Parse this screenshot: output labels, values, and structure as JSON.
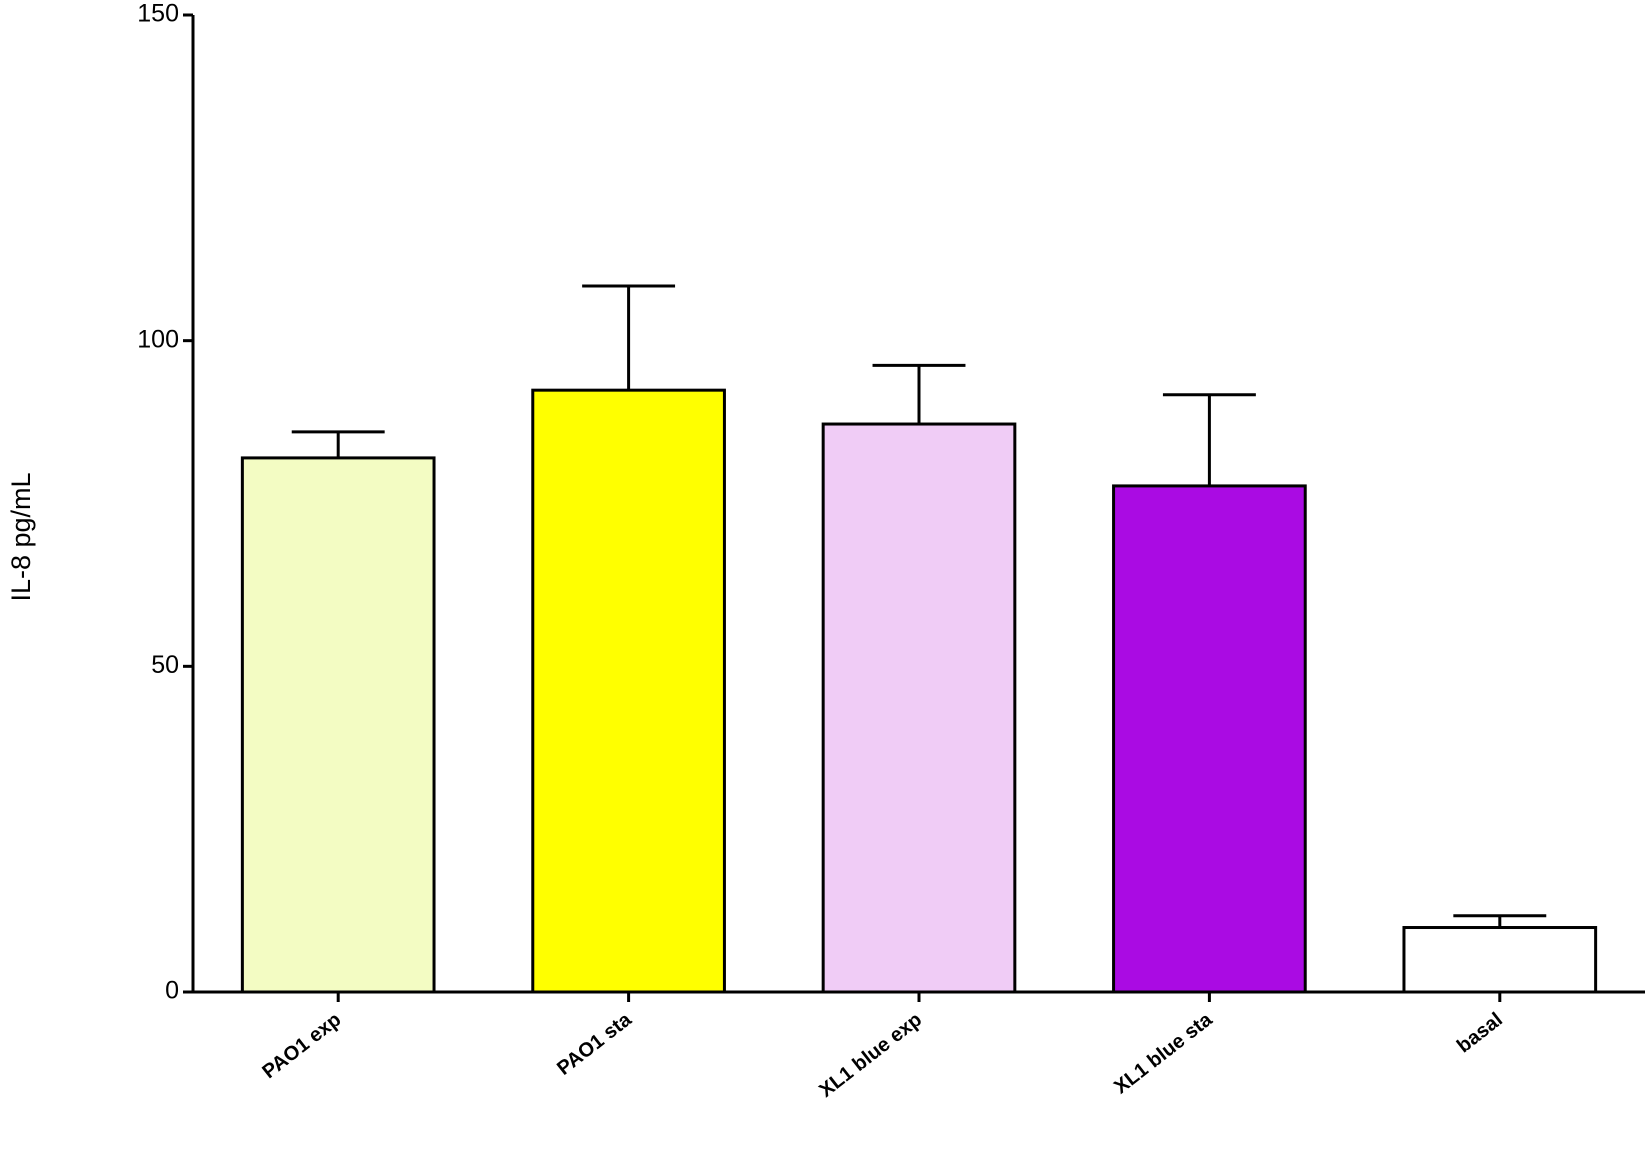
{
  "chart_data": {
    "type": "bar",
    "ylabel": "IL-8 pg/mL",
    "categories": [
      "PAO1 exp",
      "PAO1 sta",
      "XL1 blue exp",
      "XL1 blue sta",
      "basal"
    ],
    "values": [
      82,
      92.4,
      87.2,
      77.7,
      9.9
    ],
    "errors": [
      4,
      16,
      9,
      14,
      1.8
    ],
    "colors": [
      "#f3fcc3",
      "#ffff00",
      "#f0ccf6",
      "#aa0be3",
      "#ffffff"
    ],
    "ylim": [
      0,
      150
    ],
    "yticks": [
      0,
      50,
      100,
      150
    ]
  }
}
